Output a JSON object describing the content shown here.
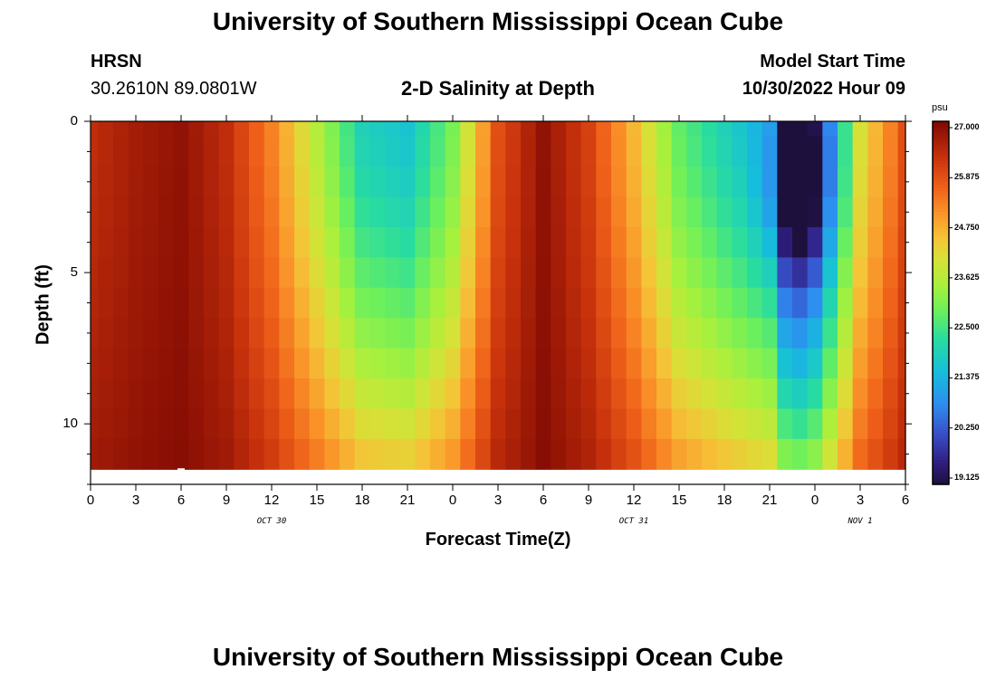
{
  "page_title": "University of Southern Mississippi Ocean Cube",
  "footer_title": "University of Southern Mississippi Ocean Cube",
  "station": {
    "name": "HRSN",
    "coords": "30.2610N  89.0801W"
  },
  "model": {
    "label": "Model Start Time",
    "start": "10/30/2022 Hour 09"
  },
  "chart_data": {
    "type": "heatmap",
    "title": "2-D Salinity at Depth",
    "xlabel": "Forecast Time(Z)",
    "ylabel": "Depth (ft)",
    "x_range_hours": [
      0,
      54
    ],
    "x_step_hours": 1,
    "ylim": [
      12,
      0
    ],
    "x_tick_labels": [
      "0",
      "3",
      "6",
      "9",
      "12",
      "15",
      "18",
      "21",
      "0",
      "3",
      "6",
      "9",
      "12",
      "15",
      "18",
      "21",
      "0",
      "3",
      "6"
    ],
    "y_ticks": [
      0,
      5,
      10
    ],
    "y_tick_labels": [
      "0",
      "5",
      "10"
    ],
    "dates": [
      {
        "label": "OCT 30",
        "hour": 12
      },
      {
        "label": "OCT 31",
        "hour": 36
      },
      {
        "label": "NOV 1",
        "hour": 51
      }
    ],
    "depth_rows": [
      0,
      1,
      2,
      3,
      4,
      5,
      6,
      7,
      8,
      9,
      10,
      11
    ],
    "missing_cell": {
      "hour": 6,
      "depth": 11.5
    },
    "colorbar": {
      "unit": "psu",
      "min": 19.125,
      "max": 27.0,
      "tick_labels": [
        "27.000",
        "25.875",
        "24.750",
        "23.625",
        "22.500",
        "21.375",
        "20.250",
        "19.125"
      ]
    },
    "surface_salinity_profile": [
      {
        "hour": 0,
        "psu": 26.3
      },
      {
        "hour": 3,
        "psu": 26.6
      },
      {
        "hour": 6,
        "psu": 26.8
      },
      {
        "hour": 9,
        "psu": 26.3
      },
      {
        "hour": 12,
        "psu": 25.2
      },
      {
        "hour": 15,
        "psu": 23.6
      },
      {
        "hour": 18,
        "psu": 22.0
      },
      {
        "hour": 21,
        "psu": 21.7
      },
      {
        "hour": 24,
        "psu": 23.0
      },
      {
        "hour": 27,
        "psu": 25.8
      },
      {
        "hour": 30,
        "psu": 26.8
      },
      {
        "hour": 33,
        "psu": 26.0
      },
      {
        "hour": 36,
        "psu": 24.6
      },
      {
        "hour": 39,
        "psu": 22.8
      },
      {
        "hour": 42,
        "psu": 22.0
      },
      {
        "hour": 45,
        "psu": 21.3
      },
      {
        "hour": 46,
        "psu": 19.4
      },
      {
        "hour": 47,
        "psu": 19.1
      },
      {
        "hour": 48,
        "psu": 19.6
      },
      {
        "hour": 49,
        "psu": 21.0
      },
      {
        "hour": 51,
        "psu": 24.0
      },
      {
        "hour": 54,
        "psu": 25.8
      }
    ]
  }
}
